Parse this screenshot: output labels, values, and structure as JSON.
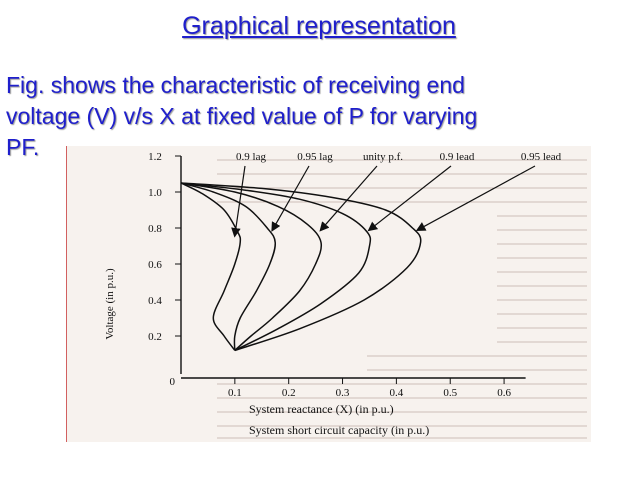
{
  "slide": {
    "title": "Graphical representation",
    "body_line1": "Fig. shows the characteristic of receiving end",
    "body_line2": "voltage (V) v/s X at fixed value of P for varying",
    "body_line3": "PF."
  },
  "colors": {
    "title_text": "#1f1fcc",
    "body_text": "#1f1fcc",
    "curve": "#111111",
    "photo_background": "#f7f2ee"
  },
  "chart_data": {
    "type": "line",
    "ylabel": "Voltage (in p.u.)",
    "xlabel": "System reactance (X) (in p.u.)",
    "xlabel2": "System short circuit capacity (in p.u.)",
    "xlim": [
      0,
      0.65
    ],
    "ylim": [
      0,
      1.2
    ],
    "xticks": [
      "0.1",
      "0.2",
      "0.3",
      "0.4",
      "0.5",
      "0.6"
    ],
    "yticks": [
      "0",
      "0.2",
      "0.4",
      "0.6",
      "0.8",
      "1.0",
      "1.2"
    ],
    "grid": false,
    "series": [
      {
        "name": "0.9 lag",
        "points": [
          [
            0,
            1.05
          ],
          [
            0.04,
            0.99
          ],
          [
            0.08,
            0.9
          ],
          [
            0.105,
            0.78
          ],
          [
            0.11,
            0.72
          ],
          [
            0.1,
            0.6
          ],
          [
            0.08,
            0.45
          ],
          [
            0.06,
            0.3
          ],
          [
            0.08,
            0.2
          ],
          [
            0.1,
            0.12
          ]
        ]
      },
      {
        "name": "0.95 lag",
        "points": [
          [
            0,
            1.05
          ],
          [
            0.06,
            1.0
          ],
          [
            0.12,
            0.92
          ],
          [
            0.16,
            0.8
          ],
          [
            0.175,
            0.72
          ],
          [
            0.165,
            0.6
          ],
          [
            0.14,
            0.45
          ],
          [
            0.11,
            0.3
          ],
          [
            0.1,
            0.2
          ],
          [
            0.1,
            0.12
          ]
        ]
      },
      {
        "name": "unity p.f.",
        "points": [
          [
            0,
            1.05
          ],
          [
            0.1,
            1.0
          ],
          [
            0.18,
            0.92
          ],
          [
            0.235,
            0.82
          ],
          [
            0.26,
            0.72
          ],
          [
            0.25,
            0.6
          ],
          [
            0.22,
            0.45
          ],
          [
            0.17,
            0.3
          ],
          [
            0.13,
            0.2
          ],
          [
            0.1,
            0.12
          ]
        ]
      },
      {
        "name": "0.9 lead",
        "points": [
          [
            0,
            1.05
          ],
          [
            0.12,
            1.01
          ],
          [
            0.22,
            0.96
          ],
          [
            0.3,
            0.88
          ],
          [
            0.345,
            0.78
          ],
          [
            0.35,
            0.7
          ],
          [
            0.33,
            0.55
          ],
          [
            0.26,
            0.38
          ],
          [
            0.18,
            0.24
          ],
          [
            0.1,
            0.12
          ]
        ]
      },
      {
        "name": "0.95 lead",
        "points": [
          [
            0,
            1.05
          ],
          [
            0.15,
            1.02
          ],
          [
            0.28,
            0.97
          ],
          [
            0.38,
            0.9
          ],
          [
            0.43,
            0.8
          ],
          [
            0.445,
            0.72
          ],
          [
            0.42,
            0.58
          ],
          [
            0.34,
            0.4
          ],
          [
            0.22,
            0.24
          ],
          [
            0.1,
            0.12
          ]
        ]
      }
    ],
    "annotations": [
      {
        "label": "0.9 lag",
        "arrow_to": [
          0.1,
          0.76
        ]
      },
      {
        "label": "0.95 lag",
        "arrow_to": [
          0.17,
          0.79
        ]
      },
      {
        "label": "unity p.f.",
        "arrow_to": [
          0.26,
          0.79
        ]
      },
      {
        "label": "0.9 lead",
        "arrow_to": [
          0.35,
          0.79
        ]
      },
      {
        "label": "0.95 lead",
        "arrow_to": [
          0.44,
          0.79
        ]
      }
    ]
  }
}
